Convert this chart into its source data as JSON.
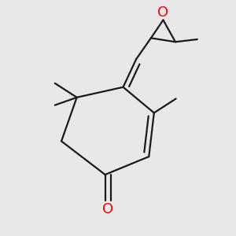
{
  "bg_color": "#e8e8e8",
  "bond_color": "#1a1a1a",
  "oxygen_color": "#ff0000",
  "line_width": 1.6,
  "o_font_size": 13
}
